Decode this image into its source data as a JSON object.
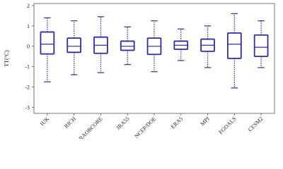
{
  "chart_data": {
    "type": "box",
    "y_label": "TT(°C)",
    "categories": [
      "IUK",
      "RICH",
      "RAOBCORE",
      "JRA55",
      "NCEP/DOE",
      "ERA5",
      "MPI",
      "FGOALS",
      "CESM2"
    ],
    "boxes": [
      {
        "low": -1.75,
        "q1": -0.38,
        "median": 0.1,
        "q3": 0.7,
        "high": 1.4
      },
      {
        "low": -1.4,
        "q1": -0.3,
        "median": 0.0,
        "q3": 0.4,
        "high": 1.25
      },
      {
        "low": -1.3,
        "q1": -0.35,
        "median": 0.05,
        "q3": 0.45,
        "high": 1.45
      },
      {
        "low": -0.9,
        "q1": -0.2,
        "median": 0.0,
        "q3": 0.25,
        "high": 0.95
      },
      {
        "low": -1.25,
        "q1": -0.4,
        "median": 0.0,
        "q3": 0.4,
        "high": 1.25
      },
      {
        "low": -0.7,
        "q1": -0.15,
        "median": 0.05,
        "q3": 0.25,
        "high": 0.85
      },
      {
        "low": -1.05,
        "q1": -0.25,
        "median": 0.05,
        "q3": 0.35,
        "high": 1.0
      },
      {
        "low": -2.05,
        "q1": -0.6,
        "median": 0.1,
        "q3": 0.65,
        "high": 1.6
      },
      {
        "low": -1.05,
        "q1": -0.5,
        "median": -0.05,
        "q3": 0.55,
        "high": 1.25
      }
    ],
    "color": "#2b2bb0",
    "ylim": [
      -3.3,
      2.1
    ],
    "yticks": [
      2,
      1,
      0,
      -1,
      -2,
      -3
    ]
  }
}
